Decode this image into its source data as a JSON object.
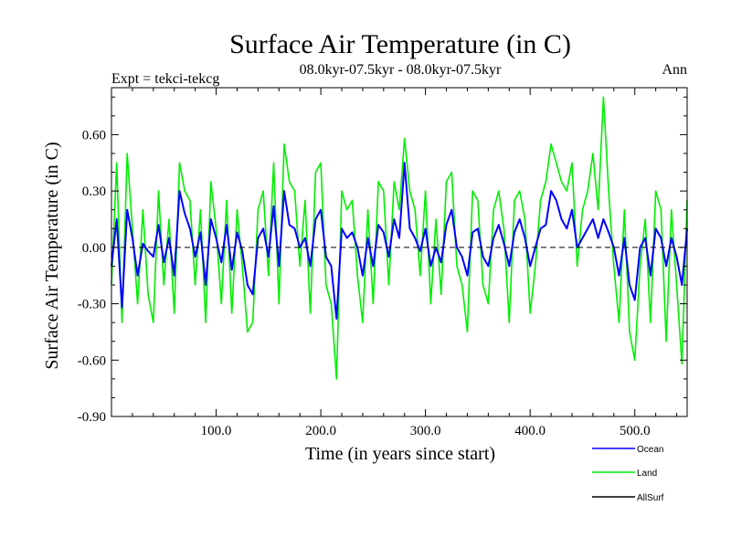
{
  "chart_data": {
    "type": "line",
    "title": "Surface Air Temperature (in C)",
    "subtitle": "08.0kyr-07.5kyr - 08.0kyr-07.5kyr",
    "left_label": "Expt = tekci-tekcg",
    "right_label": "Ann",
    "xlabel": "Time (in years since start)",
    "ylabel": "Surface Air Temperature (in C)",
    "xlim": [
      0,
      550
    ],
    "ylim": [
      -0.9,
      0.85
    ],
    "x_ticks": [
      100,
      200,
      300,
      400,
      500
    ],
    "x_tick_labels": [
      "100.0",
      "200.0",
      "300.0",
      "400.0",
      "500.0"
    ],
    "y_ticks": [
      -0.9,
      -0.6,
      -0.3,
      0.0,
      0.3,
      0.6
    ],
    "y_tick_labels": [
      "-0.90",
      "-0.60",
      "-0.30",
      "0.00",
      "0.30",
      "0.60"
    ],
    "zero_line": true,
    "legend_position": "bottom-right",
    "series": [
      {
        "name": "Ocean",
        "color": "#0000ff",
        "x": [
          0,
          5,
          10,
          15,
          20,
          25,
          30,
          35,
          40,
          45,
          50,
          55,
          60,
          65,
          70,
          75,
          80,
          85,
          90,
          95,
          100,
          105,
          110,
          115,
          120,
          125,
          130,
          135,
          140,
          145,
          150,
          155,
          160,
          165,
          170,
          175,
          180,
          185,
          190,
          195,
          200,
          205,
          210,
          215,
          220,
          225,
          230,
          235,
          240,
          245,
          250,
          255,
          260,
          265,
          270,
          275,
          280,
          285,
          290,
          295,
          300,
          305,
          310,
          315,
          320,
          325,
          330,
          335,
          340,
          345,
          350,
          355,
          360,
          365,
          370,
          375,
          380,
          385,
          390,
          395,
          400,
          405,
          410,
          415,
          420,
          425,
          430,
          435,
          440,
          445,
          450,
          455,
          460,
          465,
          470,
          475,
          480,
          485,
          490,
          495,
          500,
          505,
          510,
          515,
          520,
          525,
          530,
          535,
          540,
          545,
          550
        ],
        "values": [
          -0.1,
          0.15,
          -0.32,
          0.2,
          0.05,
          -0.15,
          0.02,
          -0.02,
          -0.05,
          0.12,
          -0.08,
          0.05,
          -0.15,
          0.3,
          0.18,
          0.1,
          -0.05,
          0.08,
          -0.2,
          0.15,
          0.05,
          -0.08,
          0.12,
          -0.12,
          0.08,
          -0.02,
          -0.2,
          -0.25,
          0.05,
          0.1,
          -0.05,
          0.22,
          -0.1,
          0.3,
          0.12,
          0.1,
          0.0,
          0.05,
          -0.1,
          0.15,
          0.2,
          -0.05,
          -0.1,
          -0.38,
          0.1,
          0.05,
          0.08,
          0.0,
          -0.15,
          0.05,
          -0.1,
          0.12,
          0.08,
          -0.05,
          0.15,
          0.05,
          0.45,
          0.1,
          0.05,
          -0.02,
          0.1,
          -0.1,
          0.0,
          -0.08,
          0.12,
          0.2,
          0.0,
          -0.05,
          -0.15,
          0.08,
          0.1,
          -0.05,
          -0.1,
          0.05,
          0.12,
          0.02,
          -0.1,
          0.08,
          0.15,
          0.05,
          -0.1,
          0.0,
          0.1,
          0.12,
          0.3,
          0.25,
          0.15,
          0.1,
          0.2,
          0.0,
          0.05,
          0.1,
          0.15,
          0.05,
          0.15,
          0.08,
          0.0,
          -0.15,
          0.05,
          -0.2,
          -0.28,
          0.0,
          0.05,
          -0.15,
          0.1,
          0.05,
          -0.1,
          0.05,
          -0.05,
          -0.2,
          0.1
        ]
      },
      {
        "name": "Land",
        "color": "#00ee00",
        "x": [
          0,
          5,
          10,
          15,
          20,
          25,
          30,
          35,
          40,
          45,
          50,
          55,
          60,
          65,
          70,
          75,
          80,
          85,
          90,
          95,
          100,
          105,
          110,
          115,
          120,
          125,
          130,
          135,
          140,
          145,
          150,
          155,
          160,
          165,
          170,
          175,
          180,
          185,
          190,
          195,
          200,
          205,
          210,
          215,
          220,
          225,
          230,
          235,
          240,
          245,
          250,
          255,
          260,
          265,
          270,
          275,
          280,
          285,
          290,
          295,
          300,
          305,
          310,
          315,
          320,
          325,
          330,
          335,
          340,
          345,
          350,
          355,
          360,
          365,
          370,
          375,
          380,
          385,
          390,
          395,
          400,
          405,
          410,
          415,
          420,
          425,
          430,
          435,
          440,
          445,
          450,
          455,
          460,
          465,
          470,
          475,
          480,
          485,
          490,
          495,
          500,
          505,
          510,
          515,
          520,
          525,
          530,
          535,
          540,
          545,
          550
        ],
        "values": [
          -0.2,
          0.45,
          -0.4,
          0.5,
          0.1,
          -0.3,
          0.2,
          -0.25,
          -0.4,
          0.3,
          -0.2,
          0.15,
          -0.35,
          0.45,
          0.3,
          0.25,
          -0.2,
          0.2,
          -0.4,
          0.35,
          0.1,
          -0.3,
          0.25,
          -0.35,
          0.2,
          -0.1,
          -0.45,
          -0.4,
          0.2,
          0.3,
          -0.15,
          0.45,
          -0.3,
          0.55,
          0.35,
          0.3,
          -0.1,
          0.25,
          -0.35,
          0.4,
          0.45,
          -0.2,
          -0.3,
          -0.7,
          0.3,
          0.2,
          0.25,
          -0.15,
          -0.4,
          0.2,
          -0.3,
          0.35,
          0.3,
          -0.2,
          0.35,
          0.2,
          0.58,
          0.3,
          0.2,
          -0.15,
          0.3,
          -0.3,
          0.15,
          -0.25,
          0.35,
          0.4,
          -0.1,
          -0.2,
          -0.45,
          0.3,
          0.25,
          -0.2,
          -0.3,
          0.2,
          0.3,
          0.1,
          -0.4,
          0.25,
          0.3,
          0.15,
          -0.35,
          -0.1,
          0.25,
          0.35,
          0.55,
          0.45,
          0.35,
          0.3,
          0.45,
          -0.1,
          0.2,
          0.3,
          0.5,
          0.2,
          0.8,
          0.3,
          -0.1,
          -0.4,
          0.2,
          -0.45,
          -0.6,
          -0.1,
          0.15,
          -0.4,
          0.3,
          0.2,
          -0.5,
          0.2,
          -0.2,
          -0.62,
          0.25
        ]
      },
      {
        "name": "AllSurf",
        "color": "#000000",
        "x": [],
        "values": []
      }
    ]
  }
}
